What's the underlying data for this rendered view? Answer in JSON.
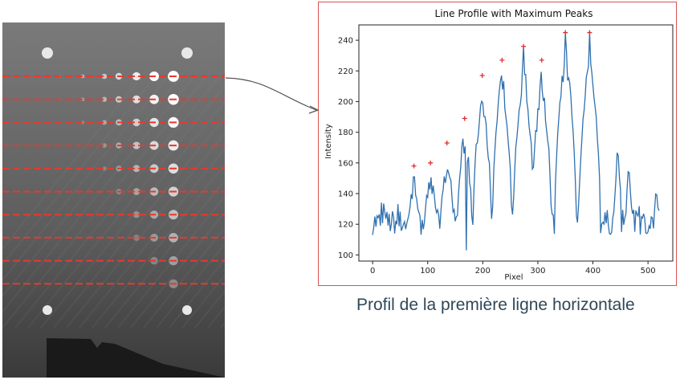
{
  "caption": "Profil de la première ligne horizontale",
  "colors": {
    "frame_border": "#d9534f",
    "profile_line": "#2f70b0",
    "peak_marker": "#e03030",
    "scan_lines": "#e8392e",
    "caption_text": "#2f4858"
  },
  "xray_image": {
    "scan_line_count": 10,
    "bright_dots": "grid of calibration holes, intensity decreasing left to right and top to bottom"
  },
  "chart_data": {
    "type": "line",
    "title": "Line Profile with Maximum Peaks",
    "xlabel": "Pixel",
    "ylabel": "Intensity",
    "xlim": [
      -25,
      545
    ],
    "ylim": [
      96,
      250
    ],
    "xticks": [
      0,
      100,
      200,
      300,
      400,
      500
    ],
    "yticks": [
      100,
      120,
      140,
      160,
      180,
      200,
      220,
      240
    ],
    "grid": false,
    "x_range": [
      0,
      520
    ],
    "baseline_range": [
      113,
      143
    ],
    "series": [
      {
        "peaks": [
          {
            "x": 75,
            "y": 158
          },
          {
            "x": 105,
            "y": 160
          },
          {
            "x": 135,
            "y": 173
          },
          {
            "x": 167,
            "y": 189
          },
          {
            "x": 199,
            "y": 217
          },
          {
            "x": 235,
            "y": 227
          },
          {
            "x": 274,
            "y": 236
          },
          {
            "x": 307,
            "y": 227
          },
          {
            "x": 350,
            "y": 245
          },
          {
            "x": 394,
            "y": 245
          }
        ],
        "secondary_bumps": [
          {
            "x": 445,
            "y": 173
          },
          {
            "x": 465,
            "y": 162
          },
          {
            "x": 515,
            "y": 150
          }
        ],
        "minimum": {
          "x": 170,
          "y": 103
        }
      }
    ]
  }
}
